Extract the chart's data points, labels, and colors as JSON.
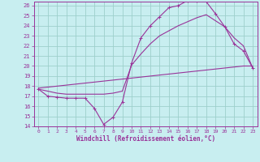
{
  "xlabel": "Windchill (Refroidissement éolien,°C)",
  "xlim": [
    -0.5,
    23.5
  ],
  "ylim": [
    14,
    26.4
  ],
  "yticks": [
    14,
    15,
    16,
    17,
    18,
    19,
    20,
    21,
    22,
    23,
    24,
    25,
    26
  ],
  "xticks": [
    0,
    1,
    2,
    3,
    4,
    5,
    6,
    7,
    8,
    9,
    10,
    11,
    12,
    13,
    14,
    15,
    16,
    17,
    18,
    19,
    20,
    21,
    22,
    23
  ],
  "background_color": "#c8eef0",
  "grid_color": "#9dcfcc",
  "line_color": "#993399",
  "curve1_x": [
    0,
    1,
    2,
    3,
    4,
    5,
    6,
    7,
    8,
    9,
    10,
    11,
    12,
    13,
    14,
    15,
    16,
    17,
    18,
    19,
    20,
    21,
    22,
    23
  ],
  "curve1_y": [
    17.7,
    17.0,
    16.9,
    16.8,
    16.8,
    16.8,
    15.8,
    14.2,
    14.9,
    16.4,
    20.3,
    22.8,
    24.0,
    24.9,
    25.8,
    26.0,
    26.5,
    26.5,
    26.4,
    25.2,
    23.9,
    22.2,
    21.5,
    19.8
  ],
  "curve2_x": [
    0,
    1,
    2,
    3,
    4,
    5,
    6,
    7,
    8,
    9,
    10,
    11,
    12,
    13,
    14,
    15,
    16,
    17,
    18,
    19,
    20,
    21,
    22,
    23
  ],
  "curve2_y": [
    17.8,
    17.9,
    18.0,
    18.1,
    18.2,
    18.3,
    18.4,
    18.5,
    18.6,
    18.7,
    18.8,
    18.9,
    19.0,
    19.1,
    19.2,
    19.3,
    19.4,
    19.5,
    19.6,
    19.7,
    19.8,
    19.9,
    20.0,
    20.0
  ],
  "curve3_x": [
    0,
    2,
    3,
    4,
    5,
    6,
    7,
    8,
    9,
    10,
    11,
    12,
    13,
    14,
    15,
    16,
    17,
    18,
    19,
    20,
    21,
    22,
    23
  ],
  "curve3_y": [
    17.7,
    17.3,
    17.2,
    17.2,
    17.2,
    17.2,
    17.2,
    17.3,
    17.5,
    20.1,
    21.2,
    22.2,
    23.0,
    23.5,
    24.0,
    24.4,
    24.8,
    25.1,
    24.5,
    23.9,
    22.8,
    22.0,
    19.8
  ]
}
